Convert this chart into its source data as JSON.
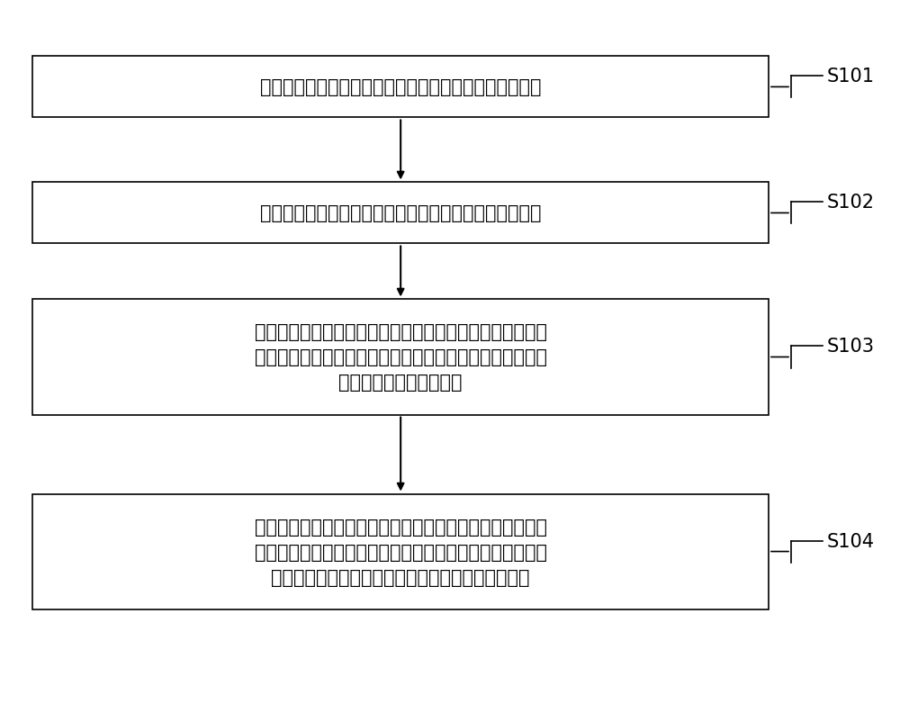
{
  "boxes": [
    {
      "id": "S101",
      "label": "提取获取的第一条通信指令和第二条通信指令的相同内容",
      "step": "S101",
      "lines": [
        "提取获取的第一条通信指令和第二条通信指令的相同内容"
      ]
    },
    {
      "id": "S102",
      "label": "提取获取的第一条通信指令和第二条通信指令的不同内容",
      "step": "S102",
      "lines": [
        "提取获取的第一条通信指令和第二条通信指令的不同内容"
      ]
    },
    {
      "id": "S103",
      "label": "根据相同内容、不同内容，解析通信指令中用于指示工位的\n占用状态的字符的编码方式、或用于指示工位对应的器件的\n分挡值的字符的编码方式",
      "step": "S103",
      "lines": [
        "根据相同内容、不同内容，解析通信指令中用于指示工位的",
        "占用状态的字符的编码方式、或用于指示工位对应的器件的",
        "分挡值的字符的编码方式"
      ]
    },
    {
      "id": "S104",
      "label": "将解析到的用于指示工位的占用状态的字符的编码方式、或\n用于指示工位对应的器件的分挡值的字符的编码方式，生成\n为配置文件；将配置文件与分选机的标识对应地存储",
      "step": "S104",
      "lines": [
        "将解析到的用于指示工位的占用状态的字符的编码方式、或",
        "用于指示工位对应的器件的分挡值的字符的编码方式，生成",
        "为配置文件；将配置文件与分选机的标识对应地存储"
      ]
    }
  ],
  "box_color": "#ffffff",
  "box_edge_color": "#000000",
  "arrow_color": "#000000",
  "step_label_color": "#000000",
  "text_color": "#000000",
  "background_color": "#ffffff",
  "font_size": 15,
  "step_font_size": 15
}
